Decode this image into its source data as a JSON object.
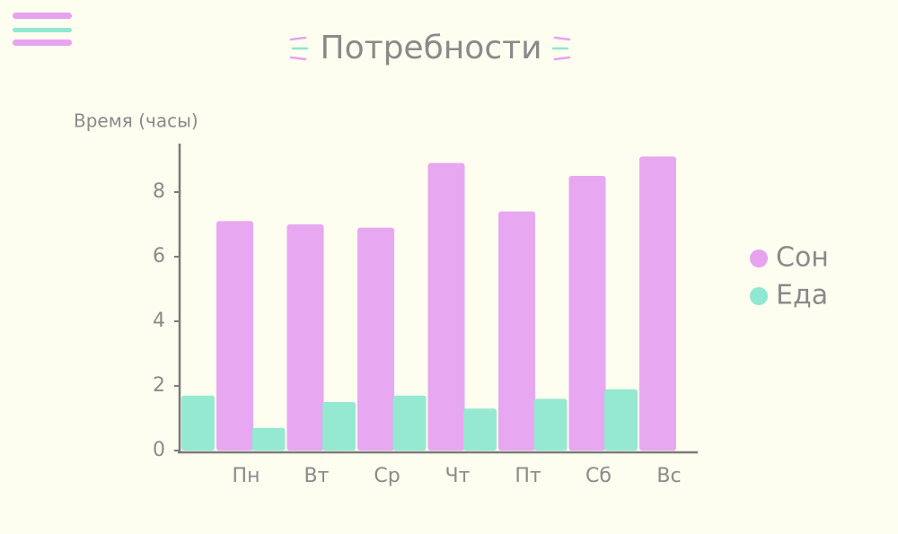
{
  "chart_data": {
    "type": "bar",
    "title": "Потребности",
    "y_label": "Время (часы)",
    "categories": [
      "Пн",
      "Вт",
      "Ср",
      "Чт",
      "Пт",
      "Сб",
      "Вс"
    ],
    "series": [
      {
        "name": "Сон",
        "color": "#e7a2f0",
        "values": [
          7.1,
          7.0,
          6.9,
          8.9,
          7.4,
          8.5,
          9.1
        ]
      },
      {
        "name": "Еда",
        "color": "#8fe8cf",
        "values": [
          1.7,
          0.7,
          1.5,
          1.7,
          1.3,
          1.6,
          1.9
        ]
      }
    ],
    "ylim": [
      0,
      9.5
    ],
    "yticks": [
      0,
      2,
      4,
      6,
      8
    ],
    "grid": false,
    "legend": "right"
  }
}
